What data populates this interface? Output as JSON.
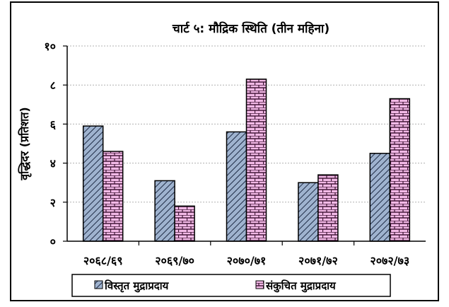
{
  "chart_data": {
    "type": "bar",
    "title": "चार्ट ५: मौद्रिक स्थिति (तीन महिना)",
    "ylabel": "वृद्धिदर (प्रतिशत)",
    "xlabel": "",
    "categories": [
      "२०६८/६९",
      "२०६९/७०",
      "२०७०/७१",
      "२०७१/७२",
      "२०७२/७३"
    ],
    "series": [
      {
        "name": "विस्तृत मुद्राप्रदाय",
        "values": [
          5.9,
          3.1,
          5.6,
          3.0,
          4.5
        ],
        "pattern": "diagonal-hatch",
        "color": "#9fb3cf"
      },
      {
        "name": "संकुचित मुद्राप्रदाय",
        "values": [
          4.6,
          1.8,
          8.3,
          3.4,
          7.3
        ],
        "pattern": "brick",
        "color": "#f2b9e6"
      }
    ],
    "ylim": [
      0,
      10
    ],
    "yticks": [
      "०",
      "२",
      "४",
      "६",
      "८",
      "१०"
    ],
    "ytick_values": [
      0,
      2,
      4,
      6,
      8,
      10
    ],
    "grid": true,
    "legend_position": "bottom"
  }
}
